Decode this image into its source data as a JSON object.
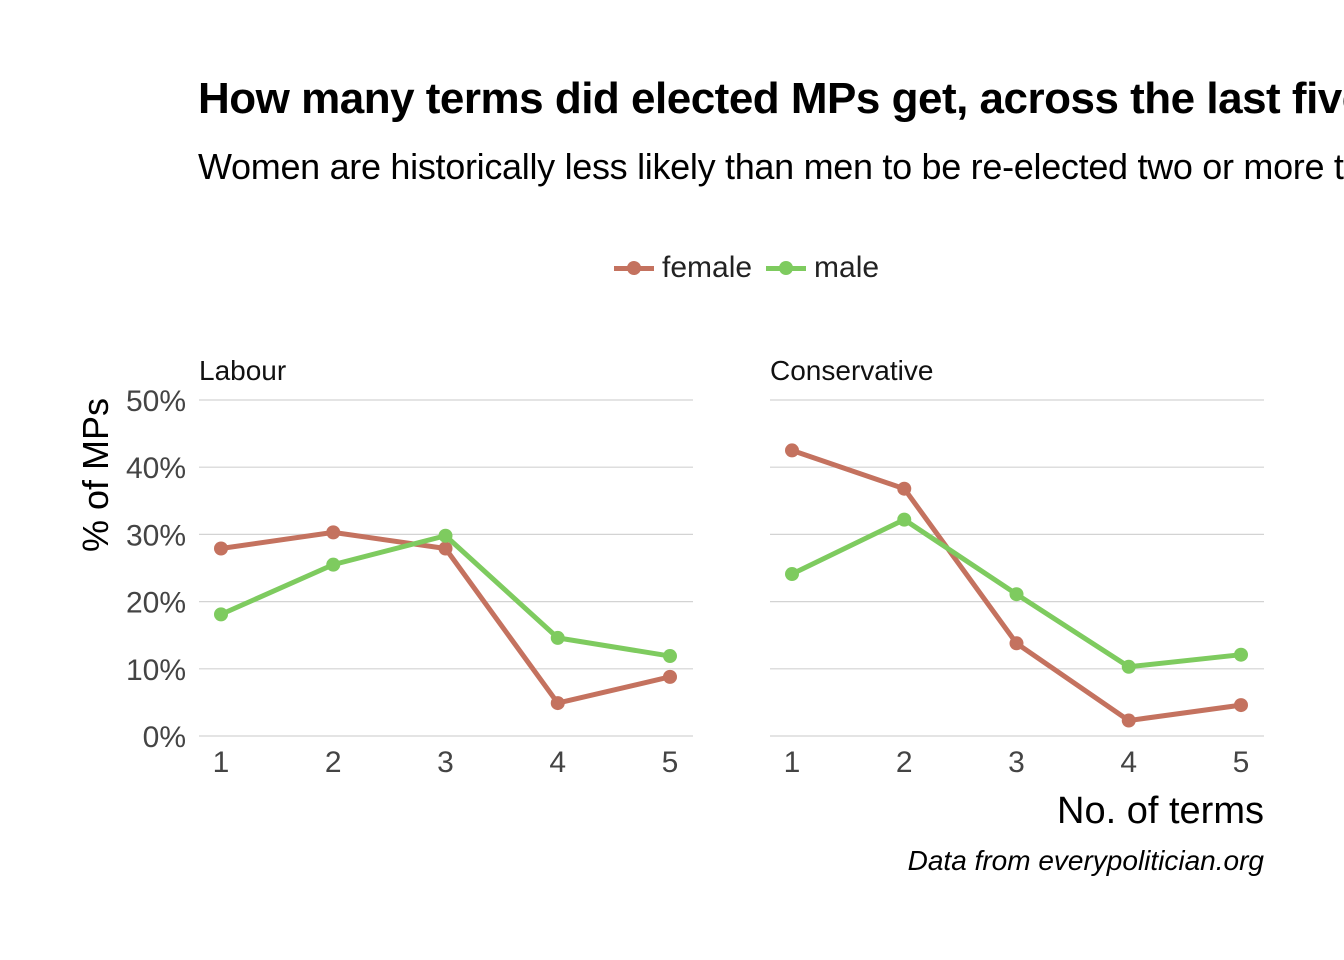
{
  "title": "How many terms did elected MPs get, across the last five",
  "subtitle": "Women are historically less likely than men to be re-elected two or more times",
  "caption": "Data from everypolitician.org",
  "legend": [
    {
      "label": "female",
      "color": "#c4725f"
    },
    {
      "label": "male",
      "color": "#7ecb5f"
    }
  ],
  "chart_data": {
    "type": "line",
    "xlabel": "No. of terms",
    "ylabel": "% of MPs",
    "x": [
      1,
      2,
      3,
      4,
      5
    ],
    "ylim": [
      0,
      50
    ],
    "yticks": [
      "0%",
      "10%",
      "20%",
      "30%",
      "40%",
      "50%"
    ],
    "yticks_values": [
      0,
      10,
      20,
      30,
      40,
      50
    ],
    "grid": true,
    "legend_position": "top",
    "facets": [
      {
        "label": "Labour",
        "series": [
          {
            "name": "female",
            "color": "#c4725f",
            "values": [
              27.9,
              30.3,
              27.9,
              4.9,
              8.8
            ]
          },
          {
            "name": "male",
            "color": "#7ecb5f",
            "values": [
              18.1,
              25.5,
              29.8,
              14.6,
              11.9
            ]
          }
        ]
      },
      {
        "label": "Conservative",
        "series": [
          {
            "name": "female",
            "color": "#c4725f",
            "values": [
              42.5,
              36.8,
              13.8,
              2.3,
              4.6
            ]
          },
          {
            "name": "male",
            "color": "#7ecb5f",
            "values": [
              24.1,
              32.2,
              21.1,
              10.3,
              12.1
            ]
          }
        ]
      }
    ]
  }
}
